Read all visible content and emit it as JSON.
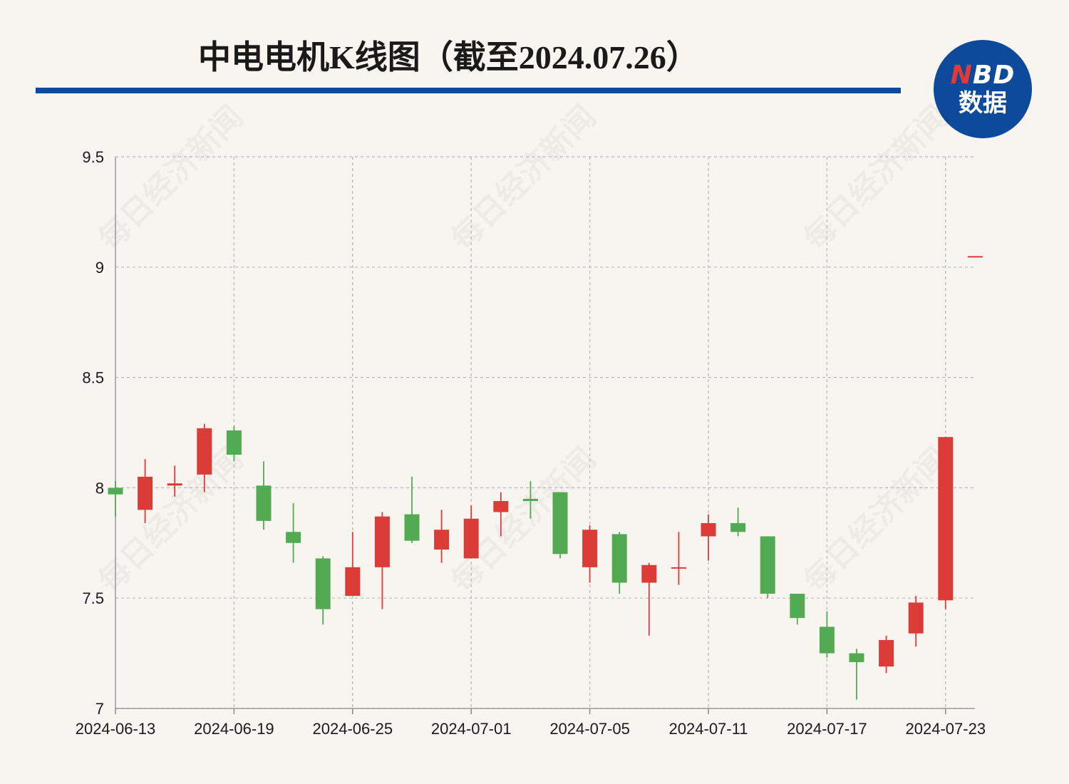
{
  "title": "中电电机K线图（截至2024.07.26）",
  "logo": {
    "top_n": "N",
    "top_rest": "BD",
    "bottom": "数据"
  },
  "watermark_text": "每日经济新闻",
  "colors": {
    "up": "#dc3c38",
    "down": "#52ab52",
    "title_rule": "#0e4a9b",
    "background": "#f8f5f0",
    "grid": "#b8b8b8"
  },
  "chart_data": {
    "type": "candlestick",
    "ylim": [
      7,
      9.5
    ],
    "y_ticks": [
      7,
      7.5,
      8,
      8.5,
      9,
      9.5
    ],
    "y_tick_labels": [
      "7",
      "7.5",
      "8",
      "8.5",
      "9",
      "9.5"
    ],
    "x_tick_labels": [
      "2024-06-13",
      "2024-06-19",
      "2024-06-25",
      "2024-07-01",
      "2024-07-05",
      "2024-07-11",
      "2024-07-17",
      "2024-07-23"
    ],
    "x_tick_indices": [
      0,
      4,
      8,
      12,
      16,
      20,
      24,
      28
    ],
    "grid": true,
    "candles": [
      {
        "date": "2024-06-13",
        "open": 8.0,
        "close": 7.97,
        "high": 8.03,
        "low": 7.87
      },
      {
        "date": "2024-06-14",
        "open": 7.9,
        "close": 8.05,
        "high": 8.13,
        "low": 7.84
      },
      {
        "date": "2024-06-17",
        "open": 8.01,
        "close": 8.02,
        "high": 8.1,
        "low": 7.96
      },
      {
        "date": "2024-06-18",
        "open": 8.06,
        "close": 8.27,
        "high": 8.29,
        "low": 7.98
      },
      {
        "date": "2024-06-19",
        "open": 8.26,
        "close": 8.15,
        "high": 8.28,
        "low": 8.12
      },
      {
        "date": "2024-06-20",
        "open": 8.01,
        "close": 7.85,
        "high": 8.12,
        "low": 7.81
      },
      {
        "date": "2024-06-21",
        "open": 7.8,
        "close": 7.75,
        "high": 7.93,
        "low": 7.66
      },
      {
        "date": "2024-06-24",
        "open": 7.68,
        "close": 7.45,
        "high": 7.69,
        "low": 7.38
      },
      {
        "date": "2024-06-25",
        "open": 7.51,
        "close": 7.64,
        "high": 7.8,
        "low": 7.51
      },
      {
        "date": "2024-06-26",
        "open": 7.64,
        "close": 7.87,
        "high": 7.89,
        "low": 7.45
      },
      {
        "date": "2024-06-27",
        "open": 7.88,
        "close": 7.76,
        "high": 8.05,
        "low": 7.75
      },
      {
        "date": "2024-06-28",
        "open": 7.72,
        "close": 7.81,
        "high": 7.9,
        "low": 7.66
      },
      {
        "date": "2024-07-01",
        "open": 7.68,
        "close": 7.86,
        "high": 7.92,
        "low": 7.68
      },
      {
        "date": "2024-07-02",
        "open": 7.89,
        "close": 7.94,
        "high": 7.98,
        "low": 7.78
      },
      {
        "date": "2024-07-03",
        "open": 7.95,
        "close": 7.94,
        "high": 8.03,
        "low": 7.86
      },
      {
        "date": "2024-07-04",
        "open": 7.98,
        "close": 7.7,
        "high": 7.98,
        "low": 7.68
      },
      {
        "date": "2024-07-05",
        "open": 7.64,
        "close": 7.81,
        "high": 7.83,
        "low": 7.57
      },
      {
        "date": "2024-07-08",
        "open": 7.79,
        "close": 7.57,
        "high": 7.8,
        "low": 7.52
      },
      {
        "date": "2024-07-09",
        "open": 7.57,
        "close": 7.65,
        "high": 7.66,
        "low": 7.33
      },
      {
        "date": "2024-07-10",
        "open": 7.64,
        "close": 7.64,
        "high": 7.8,
        "low": 7.56
      },
      {
        "date": "2024-07-11",
        "open": 7.78,
        "close": 7.84,
        "high": 7.88,
        "low": 7.67
      },
      {
        "date": "2024-07-12",
        "open": 7.84,
        "close": 7.8,
        "high": 7.91,
        "low": 7.78
      },
      {
        "date": "2024-07-15",
        "open": 7.78,
        "close": 7.52,
        "high": 7.78,
        "low": 7.5
      },
      {
        "date": "2024-07-16",
        "open": 7.52,
        "close": 7.41,
        "high": 7.52,
        "low": 7.38
      },
      {
        "date": "2024-07-17",
        "open": 7.37,
        "close": 7.25,
        "high": 7.44,
        "low": 7.23
      },
      {
        "date": "2024-07-18",
        "open": 7.25,
        "close": 7.21,
        "high": 7.27,
        "low": 7.04
      },
      {
        "date": "2024-07-19",
        "open": 7.19,
        "close": 7.31,
        "high": 7.33,
        "low": 7.16
      },
      {
        "date": "2024-07-22",
        "open": 7.34,
        "close": 7.48,
        "high": 7.51,
        "low": 7.28
      },
      {
        "date": "2024-07-23",
        "open": 7.49,
        "close": 8.23,
        "high": 8.23,
        "low": 7.45
      },
      {
        "date": "2024-07-24",
        "open": 9.05,
        "close": 9.05,
        "high": 9.05,
        "low": 9.05
      }
    ]
  }
}
